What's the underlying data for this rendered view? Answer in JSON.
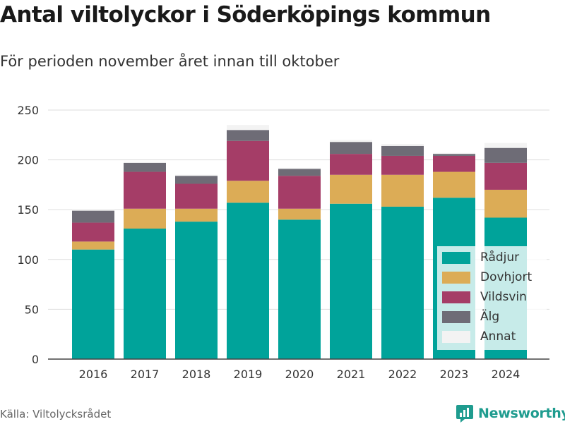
{
  "header": {
    "title": "Antal viltolyckor i Söderköpings kommun",
    "subtitle": "För perioden november året innan till oktober"
  },
  "footer": {
    "source": "Källa: Viltolycksrådet",
    "brand": "Newsworthy"
  },
  "chart_data": {
    "type": "bar",
    "stacked": true,
    "title": "Antal viltolyckor i Söderköpings kommun",
    "subtitle": "För perioden november året innan till oktober",
    "xlabel": "",
    "ylabel": "",
    "ylim": [
      0,
      250
    ],
    "yticks": [
      0,
      50,
      100,
      150,
      200,
      250
    ],
    "grid": true,
    "legend_position": "bottom-right",
    "categories": [
      "2016",
      "2017",
      "2018",
      "2019",
      "2020",
      "2021",
      "2022",
      "2023",
      "2024"
    ],
    "series": [
      {
        "name": "Rådjur",
        "color": "#00a39a",
        "values": [
          110,
          131,
          138,
          157,
          140,
          156,
          153,
          162,
          142
        ]
      },
      {
        "name": "Dovhjort",
        "color": "#dcac56",
        "values": [
          8,
          20,
          13,
          22,
          11,
          29,
          32,
          26,
          28
        ]
      },
      {
        "name": "Vildsvin",
        "color": "#a53d67",
        "values": [
          19,
          37,
          25,
          40,
          33,
          21,
          19,
          16,
          27
        ]
      },
      {
        "name": "Älg",
        "color": "#6e6c76",
        "values": [
          12,
          9,
          8,
          11,
          7,
          12,
          10,
          2,
          15
        ]
      },
      {
        "name": "Annat",
        "color": "#f3f3f3",
        "values": [
          1,
          1,
          1,
          5,
          1,
          2,
          2,
          1,
          5
        ]
      }
    ]
  }
}
